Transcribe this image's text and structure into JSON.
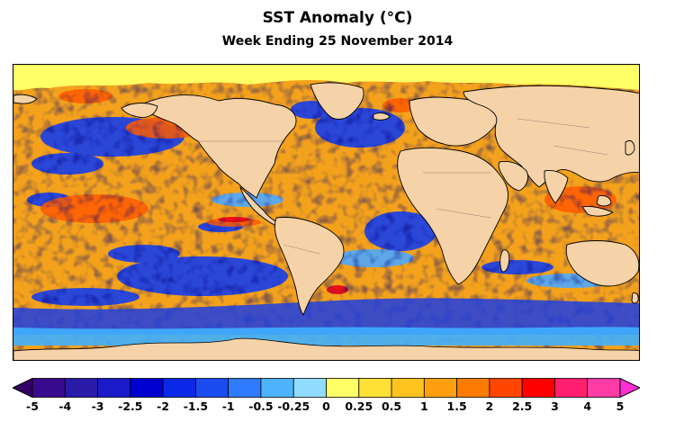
{
  "title": "SST Anomaly (°C)",
  "subtitle": "Week Ending 25 November 2014",
  "map": {
    "type": "global sea surface temperature anomaly map",
    "land_color": "#f5d2a8",
    "sea_ice_color": "#ffff66",
    "coastline_color": "#000000"
  },
  "colorbar": {
    "units": "°C",
    "extend": "both",
    "levels": [
      "-5",
      "-4",
      "-3",
      "-2.5",
      "-2",
      "-1.5",
      "-1",
      "-0.5",
      "-0.25",
      "0",
      "0.25",
      "0.5",
      "1",
      "1.5",
      "2",
      "2.5",
      "3",
      "4",
      "5"
    ],
    "colors": [
      "#330066",
      "#3a0a8c",
      "#2a1aa8",
      "#1a1ac8",
      "#0000d0",
      "#0a28e6",
      "#1a4cf0",
      "#2f7bff",
      "#4fb3ff",
      "#8fdcff",
      "#ffff66",
      "#ffe135",
      "#ffc31f",
      "#ff9f0f",
      "#ff7a00",
      "#ff4500",
      "#ff0000",
      "#ff1f6e",
      "#ff3ca6",
      "#ff2fd4"
    ]
  }
}
